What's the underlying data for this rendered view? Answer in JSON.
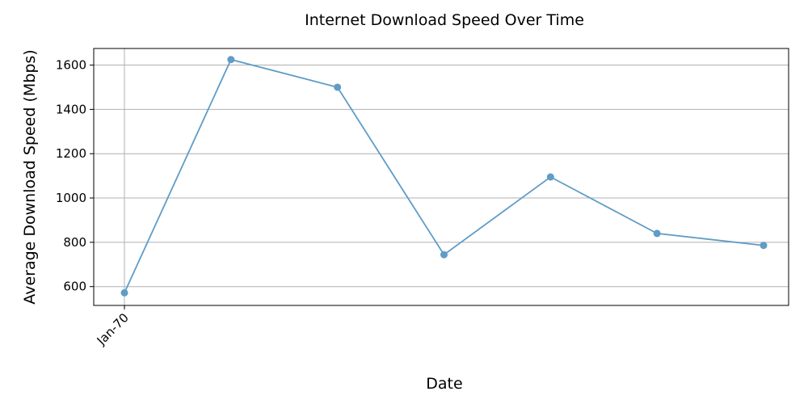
{
  "chart_data": {
    "type": "line",
    "title": "Internet Download Speed Over Time",
    "xlabel": "Date",
    "ylabel": "Average Download Speed (Mbps)",
    "x_tick_labels": [
      "Jan-70"
    ],
    "y_ticks": [
      600,
      800,
      1000,
      1200,
      1400,
      1600
    ],
    "ylim": [
      515,
      1675
    ],
    "grid": true,
    "series": [
      {
        "values": [
          572,
          1625,
          1500,
          744,
          1095,
          840,
          786
        ],
        "color": "#5f9cc7"
      }
    ]
  }
}
